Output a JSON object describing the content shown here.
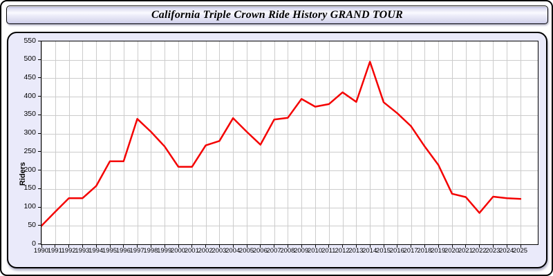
{
  "window": {
    "title": "California Triple Crown Ride History GRAND TOUR"
  },
  "chart_data": {
    "type": "line",
    "title": "California Triple Crown Ride History GRAND TOUR",
    "xlabel": "",
    "ylabel": "Riders",
    "x": [
      1990,
      1991,
      1992,
      1993,
      1994,
      1995,
      1996,
      1997,
      1998,
      1999,
      2000,
      2001,
      2002,
      2003,
      2004,
      2005,
      2006,
      2007,
      2008,
      2009,
      2010,
      2011,
      2012,
      2013,
      2014,
      2015,
      2016,
      2017,
      2018,
      2019,
      2020,
      2021,
      2022,
      2023,
      2024,
      2025
    ],
    "series": [
      {
        "name": "Riders",
        "color": "#f40000",
        "values": [
          50,
          88,
          125,
          125,
          158,
          225,
          225,
          340,
          305,
          265,
          210,
          210,
          268,
          280,
          342,
          305,
          270,
          338,
          343,
          394,
          373,
          380,
          412,
          386,
          495,
          385,
          355,
          320,
          265,
          215,
          137,
          128,
          85,
          129,
          125,
          123
        ]
      }
    ],
    "ylim": [
      0,
      550
    ],
    "ytick_step": 50,
    "grid": true,
    "legend": "none",
    "grid_color": "#cccccc",
    "plot_bg": "#ffffff",
    "panel_bg": "#eaeafa"
  }
}
